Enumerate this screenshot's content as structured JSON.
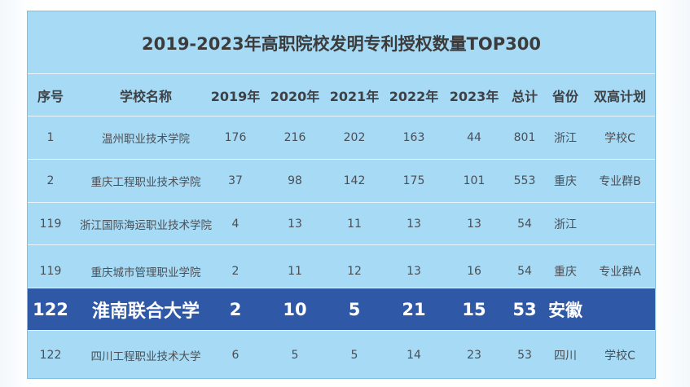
{
  "title": "2019-2023年高职院校发明专利授权数量TOP300",
  "table": {
    "headers": [
      "序号",
      "学校名称",
      "2019年",
      "2020年",
      "2021年",
      "2022年",
      "2023年",
      "总计",
      "省份",
      "双高计划"
    ],
    "rows": [
      {
        "idx": "1",
        "name": "温州职业技术学院",
        "y2019": "176",
        "y2020": "216",
        "y2021": "202",
        "y2022": "163",
        "y2023": "44",
        "total": "801",
        "province": "浙江",
        "plan": "学校C"
      },
      {
        "idx": "2",
        "name": "重庆工程职业技术学院",
        "y2019": "37",
        "y2020": "98",
        "y2021": "142",
        "y2022": "175",
        "y2023": "101",
        "total": "553",
        "province": "重庆",
        "plan": "专业群B"
      },
      {
        "idx": "119",
        "name": "浙江国际海运职业技术学院",
        "y2019": "4",
        "y2020": "13",
        "y2021": "11",
        "y2022": "13",
        "y2023": "13",
        "total": "54",
        "province": "浙江",
        "plan": ""
      },
      {
        "idx": "119",
        "name": "重庆城市管理职业学院",
        "y2019": "2",
        "y2020": "11",
        "y2021": "12",
        "y2022": "13",
        "y2023": "16",
        "total": "54",
        "province": "重庆",
        "plan": "专业群A"
      },
      {
        "idx": "122",
        "name": "淮南联合大学",
        "y2019": "2",
        "y2020": "10",
        "y2021": "5",
        "y2022": "21",
        "y2023": "15",
        "total": "53",
        "province": "安徽",
        "plan": ""
      },
      {
        "idx": "122",
        "name": "四川工程职业技术大学",
        "y2019": "6",
        "y2020": "5",
        "y2021": "5",
        "y2022": "14",
        "y2023": "23",
        "total": "53",
        "province": "四川",
        "plan": "学校C"
      }
    ]
  },
  "colors": {
    "panel_background": "#a7daf5",
    "highlight_row": "#2f59a6",
    "highlight_text": "#ffffff"
  }
}
